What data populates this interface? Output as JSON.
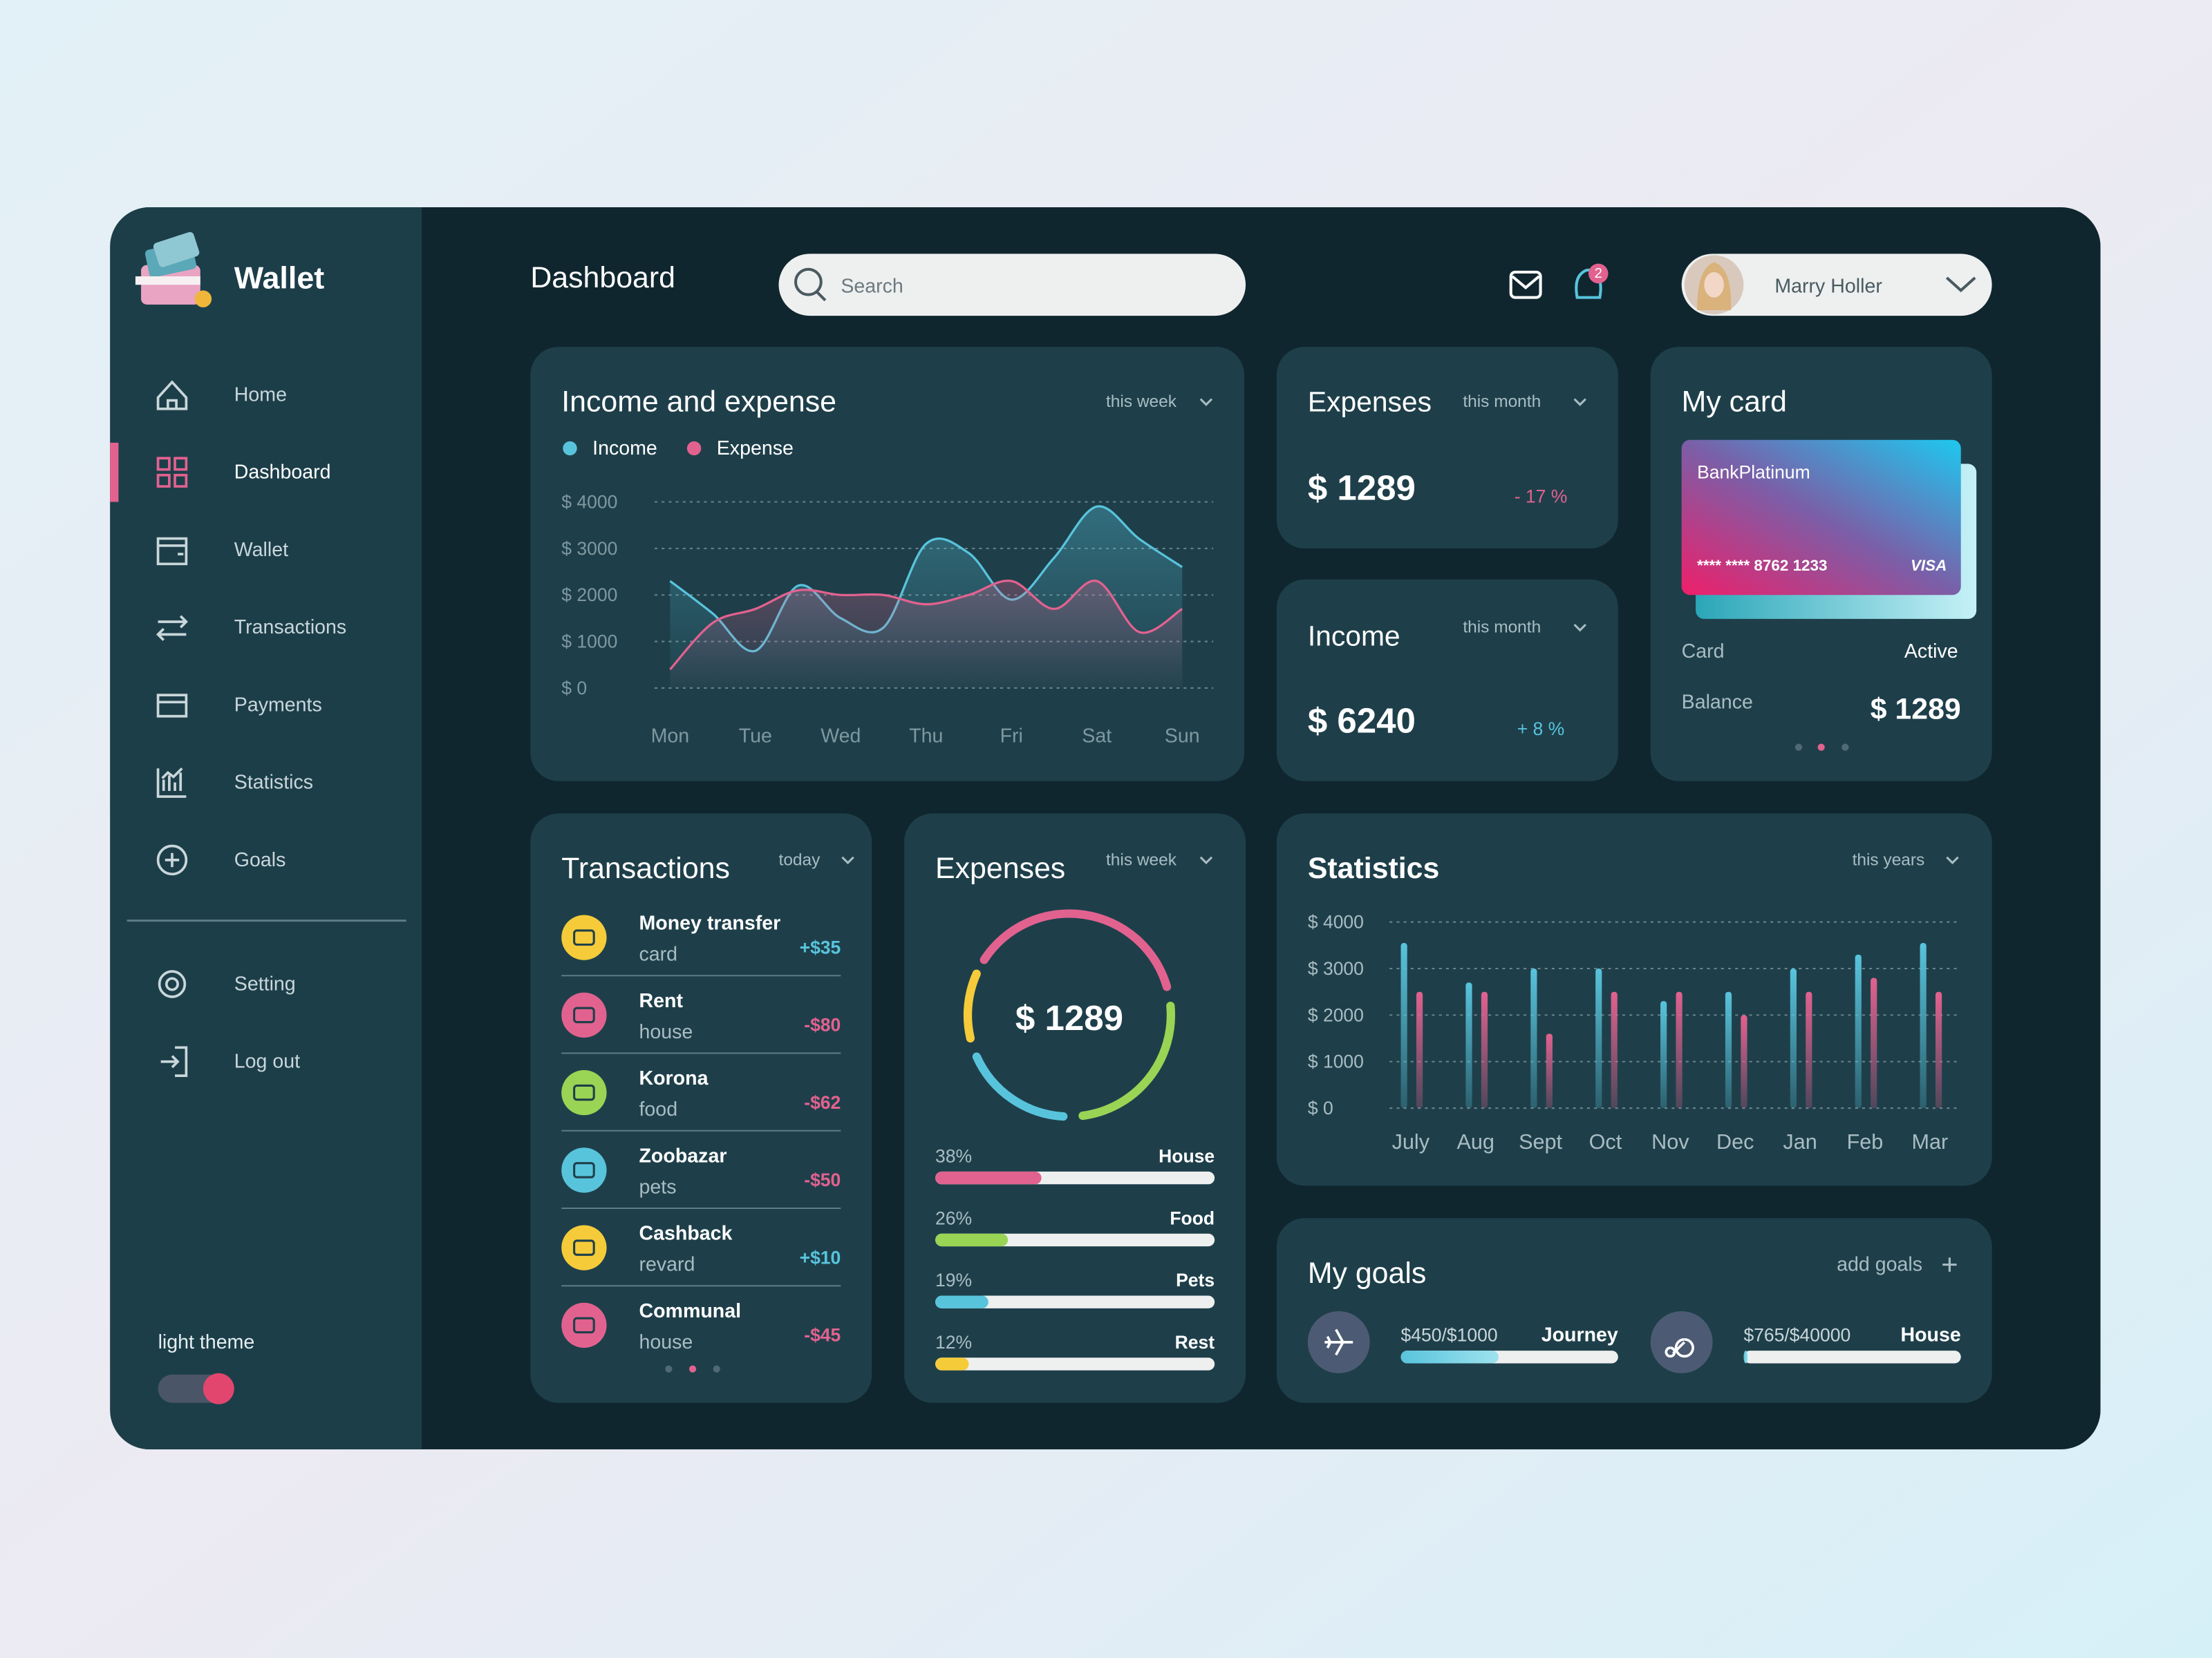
{
  "sidebar": {
    "brand": "Wallet",
    "nav": [
      "Home",
      "Dashboard",
      "Wallet",
      "Transactions",
      "Payments",
      "Statistics",
      "Goals"
    ],
    "active": "Dashboard",
    "bottom": [
      "Setting",
      "Log out"
    ],
    "theme_label": "light theme"
  },
  "header": {
    "title": "Dashboard",
    "search_placeholder": "Search",
    "notifications": "2",
    "user": "Marry Holler"
  },
  "income_expense": {
    "type": "line",
    "title": "Income and expense",
    "period": "this week",
    "categories": [
      "Mon",
      null,
      "Tue",
      null,
      "Wed",
      null,
      "Thu",
      null,
      "Fri",
      null,
      "Sat",
      null,
      "Sun"
    ],
    "series": [
      {
        "name": "Income",
        "color": "#58c4dc",
        "values": [
          2300,
          1600,
          800,
          2200,
          1500,
          1300,
          3100,
          2900,
          1900,
          2800,
          3900,
          3200,
          2600
        ]
      },
      {
        "name": "Expense",
        "color": "#e2628f",
        "values": [
          400,
          1400,
          1700,
          2100,
          2000,
          2000,
          1800,
          2000,
          2300,
          1700,
          2300,
          1200,
          1700
        ]
      }
    ],
    "ylim": [
      0,
      4000
    ],
    "yticks": [
      {
        "value": 0,
        "label": "$ 0"
      },
      {
        "value": 1000,
        "label": "$ 1000"
      },
      {
        "value": 2000,
        "label": "$ 2000"
      },
      {
        "value": 3000,
        "label": "$ 3000"
      },
      {
        "value": 4000,
        "label": "$ 4000"
      }
    ],
    "grid": true
  },
  "cards": {
    "expenses": {
      "title": "Expenses",
      "period": "this month",
      "amount": "$ 1289",
      "change": "- 17 %"
    },
    "income": {
      "title": "Income",
      "period": "this month",
      "amount": "$ 6240",
      "change": "+ 8 %"
    }
  },
  "my_card": {
    "title": "My card",
    "bank": "BankPlatinum",
    "number": "**** **** 8762 1233",
    "network": "VISA",
    "status_label": "Card",
    "status": "Active",
    "balance_label": "Balance",
    "balance": "$ 1289"
  },
  "transactions": {
    "title": "Transactions",
    "period": "today",
    "items": [
      {
        "name": "Money transfer",
        "detail": "card",
        "amount": "+$35"
      },
      {
        "name": "Rent",
        "detail": "house",
        "amount": "-$80"
      },
      {
        "name": "Korona",
        "detail": "food",
        "amount": "-$62"
      },
      {
        "name": "Zoobazar",
        "detail": "pets",
        "amount": "-$50"
      },
      {
        "name": "Cashback",
        "detail": "revard",
        "amount": "+$10"
      },
      {
        "name": "Communal",
        "detail": "house",
        "amount": "-$45"
      }
    ]
  },
  "expense_breakdown": {
    "type": "donut",
    "title": "Expenses",
    "period": "this week",
    "total": "$ 1289",
    "categories": [
      "House",
      "Food",
      "Pets",
      "Rest"
    ],
    "values": [
      38,
      26,
      19,
      12
    ],
    "value_labels": [
      "38%",
      "26%",
      "19%",
      "12%"
    ],
    "colors": [
      "#e2628f",
      "#9ad454",
      "#58c4dc",
      "#f5cb3a"
    ]
  },
  "statistics": {
    "type": "bar",
    "title": "Statistics",
    "period": "this years",
    "categories": [
      "July",
      "Aug",
      "Sept",
      "Oct",
      "Nov",
      "Dec",
      "Jan",
      "Feb",
      "Mar"
    ],
    "series": [
      {
        "color": "#58c4dc",
        "values": [
          3550,
          2700,
          3000,
          3000,
          2300,
          2500,
          3000,
          3300,
          3550
        ]
      },
      {
        "color": "#e2628f",
        "values": [
          2500,
          2500,
          1600,
          2500,
          2500,
          2000,
          2500,
          2800,
          2500
        ]
      }
    ],
    "ylim": [
      0,
      4000
    ],
    "yticks": [
      {
        "value": 0,
        "label": "$ 0"
      },
      {
        "value": 1000,
        "label": "$ 1000"
      },
      {
        "value": 2000,
        "label": "$ 2000"
      },
      {
        "value": 3000,
        "label": "$ 3000"
      },
      {
        "value": 4000,
        "label": "$ 4000"
      }
    ],
    "grid": true
  },
  "goals": {
    "title": "My goals",
    "add_label": "add goals",
    "items": [
      {
        "name": "Journey",
        "saved": 450,
        "target": 1000,
        "label": "$450/$1000"
      },
      {
        "name": "House",
        "saved": 765,
        "target": 40000,
        "label": "$765/$40000"
      }
    ]
  }
}
